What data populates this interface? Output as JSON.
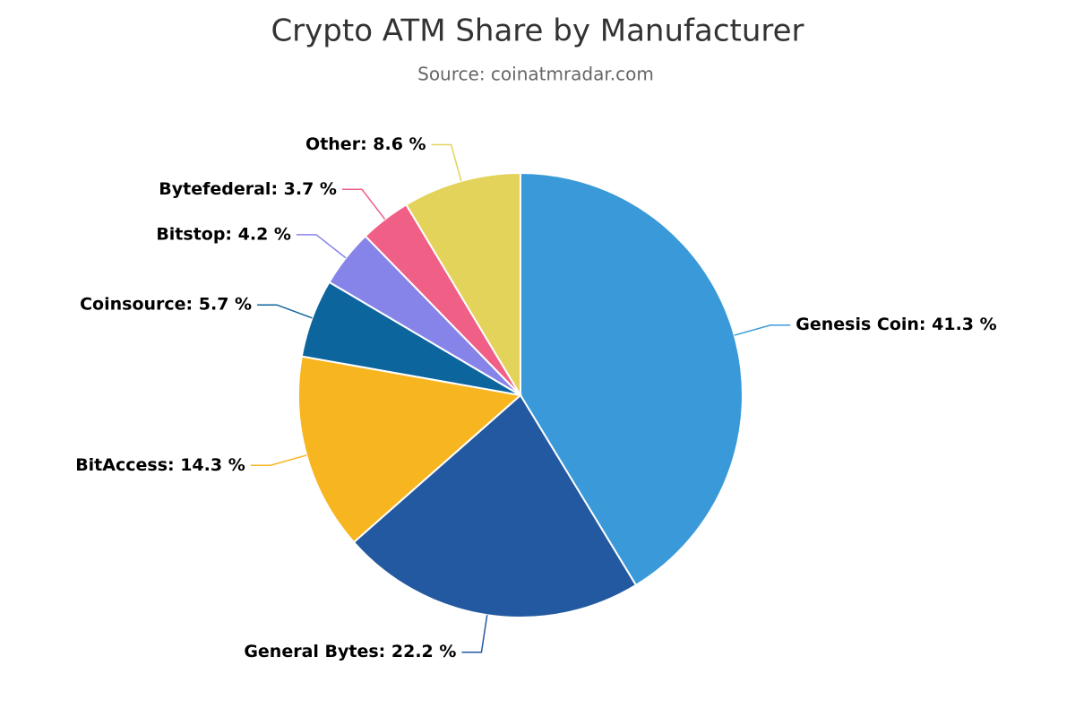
{
  "chart_data": {
    "type": "pie",
    "title": "Crypto ATM Share by Manufacturer",
    "subtitle": "Source: coinatmradar.com",
    "values": [
      41.3,
      22.2,
      14.3,
      5.7,
      4.2,
      3.7,
      8.6
    ],
    "value_labels": [
      "Genesis Coin: 41.3 %",
      "General Bytes: 22.2 %",
      "BitAccess: 14.3 %",
      "Coinsource: 5.7 %",
      "Bitstop: 4.2 %",
      "Bytefederal: 3.7 %",
      "Other: 8.6 %"
    ],
    "colors": [
      "#3a9ad9",
      "#2359a0",
      "#f7b520",
      "#0d659e",
      "#8684e8",
      "#ef5f86",
      "#e3d35a"
    ]
  }
}
